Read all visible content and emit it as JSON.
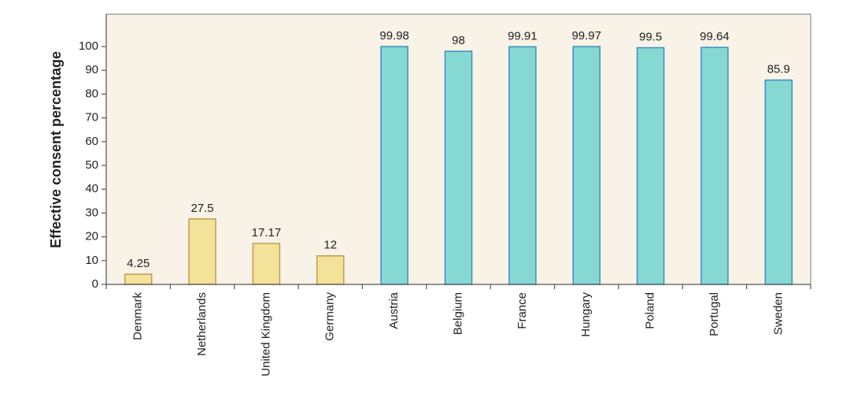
{
  "chart_data": {
    "type": "bar",
    "y_label": "Effective consent percentage",
    "categories": [
      "Denmark",
      "Netherlands",
      "United Kingdom",
      "Germany",
      "Austria",
      "Belgium",
      "France",
      "Hungary",
      "Poland",
      "Portugal",
      "Sweden"
    ],
    "values": [
      4.25,
      27.5,
      17.17,
      12,
      99.98,
      98,
      99.91,
      99.97,
      99.5,
      99.64,
      85.9
    ],
    "colors": [
      "#f3e29a",
      "#f3e29a",
      "#f3e29a",
      "#f3e29a",
      "#86d9d2",
      "#86d9d2",
      "#86d9d2",
      "#86d9d2",
      "#86d9d2",
      "#86d9d2",
      "#86d9d2"
    ],
    "edgecolors": [
      "#c39a4e",
      "#c39a4e",
      "#c39a4e",
      "#c39a4e",
      "#3a8fbf",
      "#3a8fbf",
      "#3a8fbf",
      "#3a8fbf",
      "#3a8fbf",
      "#3a8fbf",
      "#3a8fbf"
    ],
    "ylim": [
      0,
      113.6
    ],
    "yticks": [
      0,
      10,
      20,
      30,
      40,
      50,
      60,
      70,
      80,
      90,
      100
    ],
    "plot_background": "#f8f2e7"
  }
}
